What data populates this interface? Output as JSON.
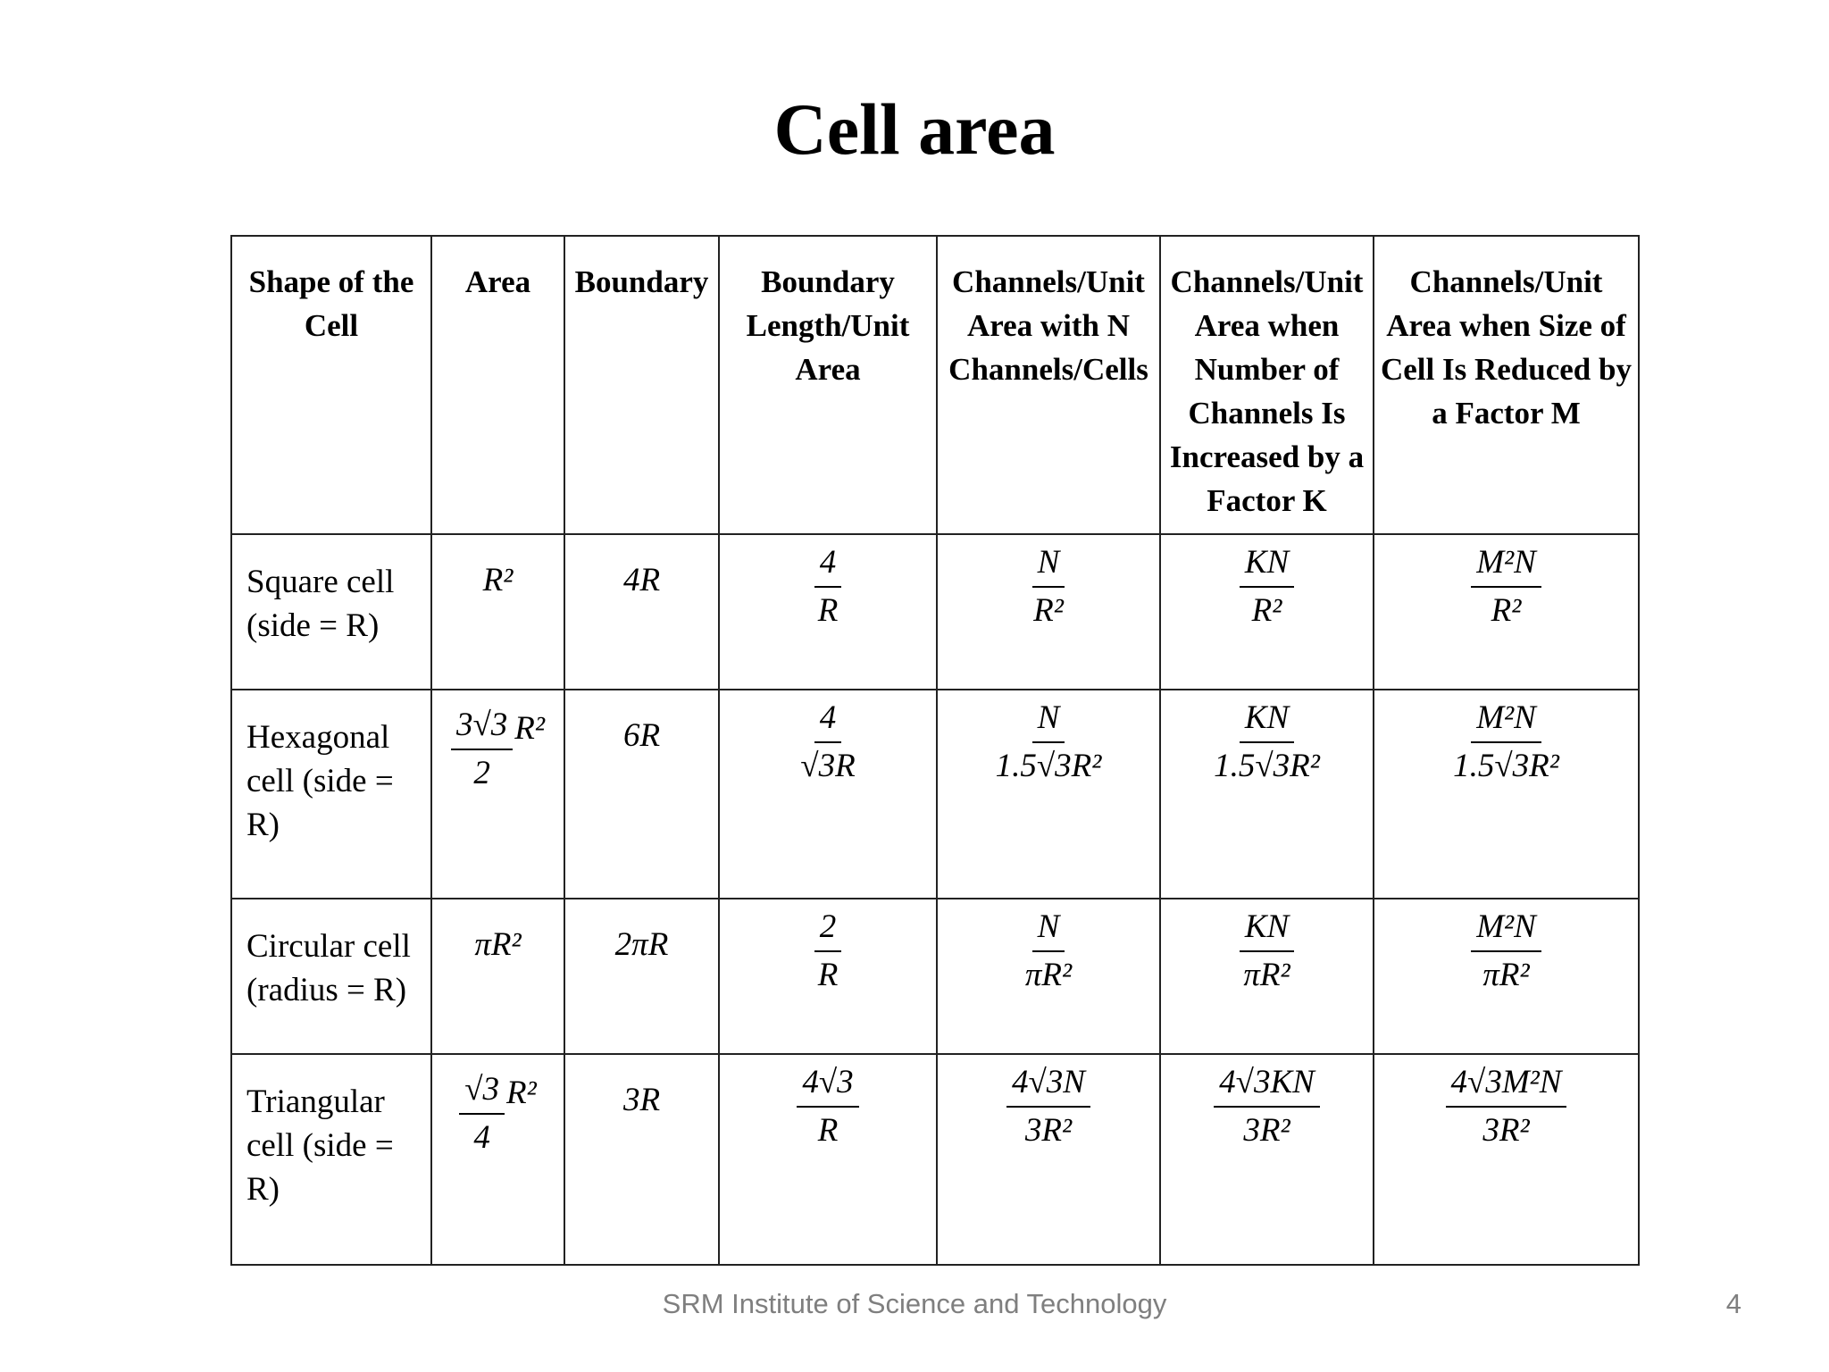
{
  "slide": {
    "title": "Cell area",
    "footer": "SRM Institute of Science and Technology",
    "page_number": "4"
  },
  "table": {
    "headers": [
      "Shape of the Cell",
      "Area",
      "Boundary",
      "Boundary Length/Unit Area",
      "Channels/Unit Area with N Channels/Cells",
      "Channels/Unit Area when Number of Channels Is Increased by a Factor K",
      "Channels/Unit Area when Size of Cell Is Reduced by a Factor M"
    ],
    "rows": [
      {
        "shape": "Square cell (side = R)",
        "area": "R²",
        "boundary": "4R",
        "boundary_per_area": {
          "num": "4",
          "den": "R"
        },
        "channels_n": {
          "num": "N",
          "den": "R²"
        },
        "channels_k": {
          "num": "KN",
          "den": "R²"
        },
        "channels_m": {
          "num": "M²N",
          "den": "R²"
        }
      },
      {
        "shape": "Hexagonal cell (side = R)",
        "area": {
          "num": "3√3",
          "den": "2",
          "tail": "R²"
        },
        "boundary": "6R",
        "boundary_per_area": {
          "num": "4",
          "den": "√3R"
        },
        "channels_n": {
          "num": "N",
          "den": "1.5√3R²"
        },
        "channels_k": {
          "num": "KN",
          "den": "1.5√3R²"
        },
        "channels_m": {
          "num": "M²N",
          "den": "1.5√3R²"
        }
      },
      {
        "shape": "Circular cell (radius = R)",
        "area": "πR²",
        "boundary": "2πR",
        "boundary_per_area": {
          "num": "2",
          "den": "R"
        },
        "channels_n": {
          "num": "N",
          "den": "πR²"
        },
        "channels_k": {
          "num": "KN",
          "den": "πR²"
        },
        "channels_m": {
          "num": "M²N",
          "den": "πR²"
        }
      },
      {
        "shape": "Triangular cell (side = R)",
        "area": {
          "num": "√3",
          "den": "4",
          "tail": "R²"
        },
        "boundary": "3R",
        "boundary_per_area": {
          "num": "4√3",
          "den": "R"
        },
        "channels_n": {
          "num": "4√3N",
          "den": "3R²"
        },
        "channels_k": {
          "num": "4√3KN",
          "den": "3R²"
        },
        "channels_m": {
          "num": "4√3M²N",
          "den": "3R²"
        }
      }
    ]
  }
}
